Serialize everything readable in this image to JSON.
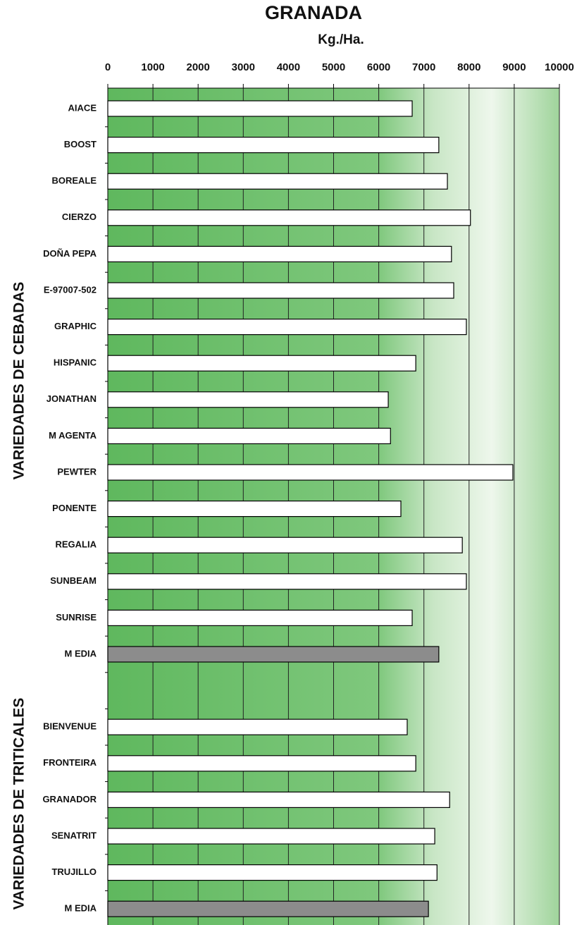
{
  "chart_data": {
    "type": "bar",
    "orientation": "horizontal",
    "title": "GRANADA",
    "subtitle": "Kg./Ha.",
    "group_labels": [
      "VARIEDADES DE CEBADAS",
      "VARIEDADES DE TRITICALES"
    ],
    "categories": [
      "AIACE",
      "BOOST",
      "BOREALE",
      "CIERZO",
      "DOÑA PEPA",
      "E-97007-502",
      "GRAPHIC",
      "HISPANIC",
      "JONATHAN",
      "M AGENTA",
      "PEWTER",
      "PONENTE",
      "REGALIA",
      "SUNBEAM",
      "SUNRISE",
      "M EDIA",
      null,
      "BIENVENUE",
      "FRONTEIRA",
      "GRANADOR",
      "SENATRIT",
      "TRUJILLO",
      "M EDIA"
    ],
    "values": [
      6740,
      7330,
      7520,
      8030,
      7610,
      7660,
      7940,
      6820,
      6210,
      6260,
      8970,
      6490,
      7850,
      7940,
      6740,
      7330,
      null,
      6630,
      6820,
      7570,
      7240,
      7290,
      7100
    ],
    "colors": [
      "#ffffff",
      "#ffffff",
      "#ffffff",
      "#ffffff",
      "#ffffff",
      "#ffffff",
      "#ffffff",
      "#ffffff",
      "#ffffff",
      "#ffffff",
      "#ffffff",
      "#ffffff",
      "#ffffff",
      "#ffffff",
      "#ffffff",
      "#8c8c8c",
      null,
      "#ffffff",
      "#ffffff",
      "#ffffff",
      "#ffffff",
      "#ffffff",
      "#8c8c8c"
    ],
    "xlim": [
      0,
      10000
    ],
    "xticks": [
      0,
      1000,
      2000,
      3000,
      4000,
      5000,
      6000,
      7000,
      8000,
      9000,
      10000
    ],
    "grid": true
  }
}
